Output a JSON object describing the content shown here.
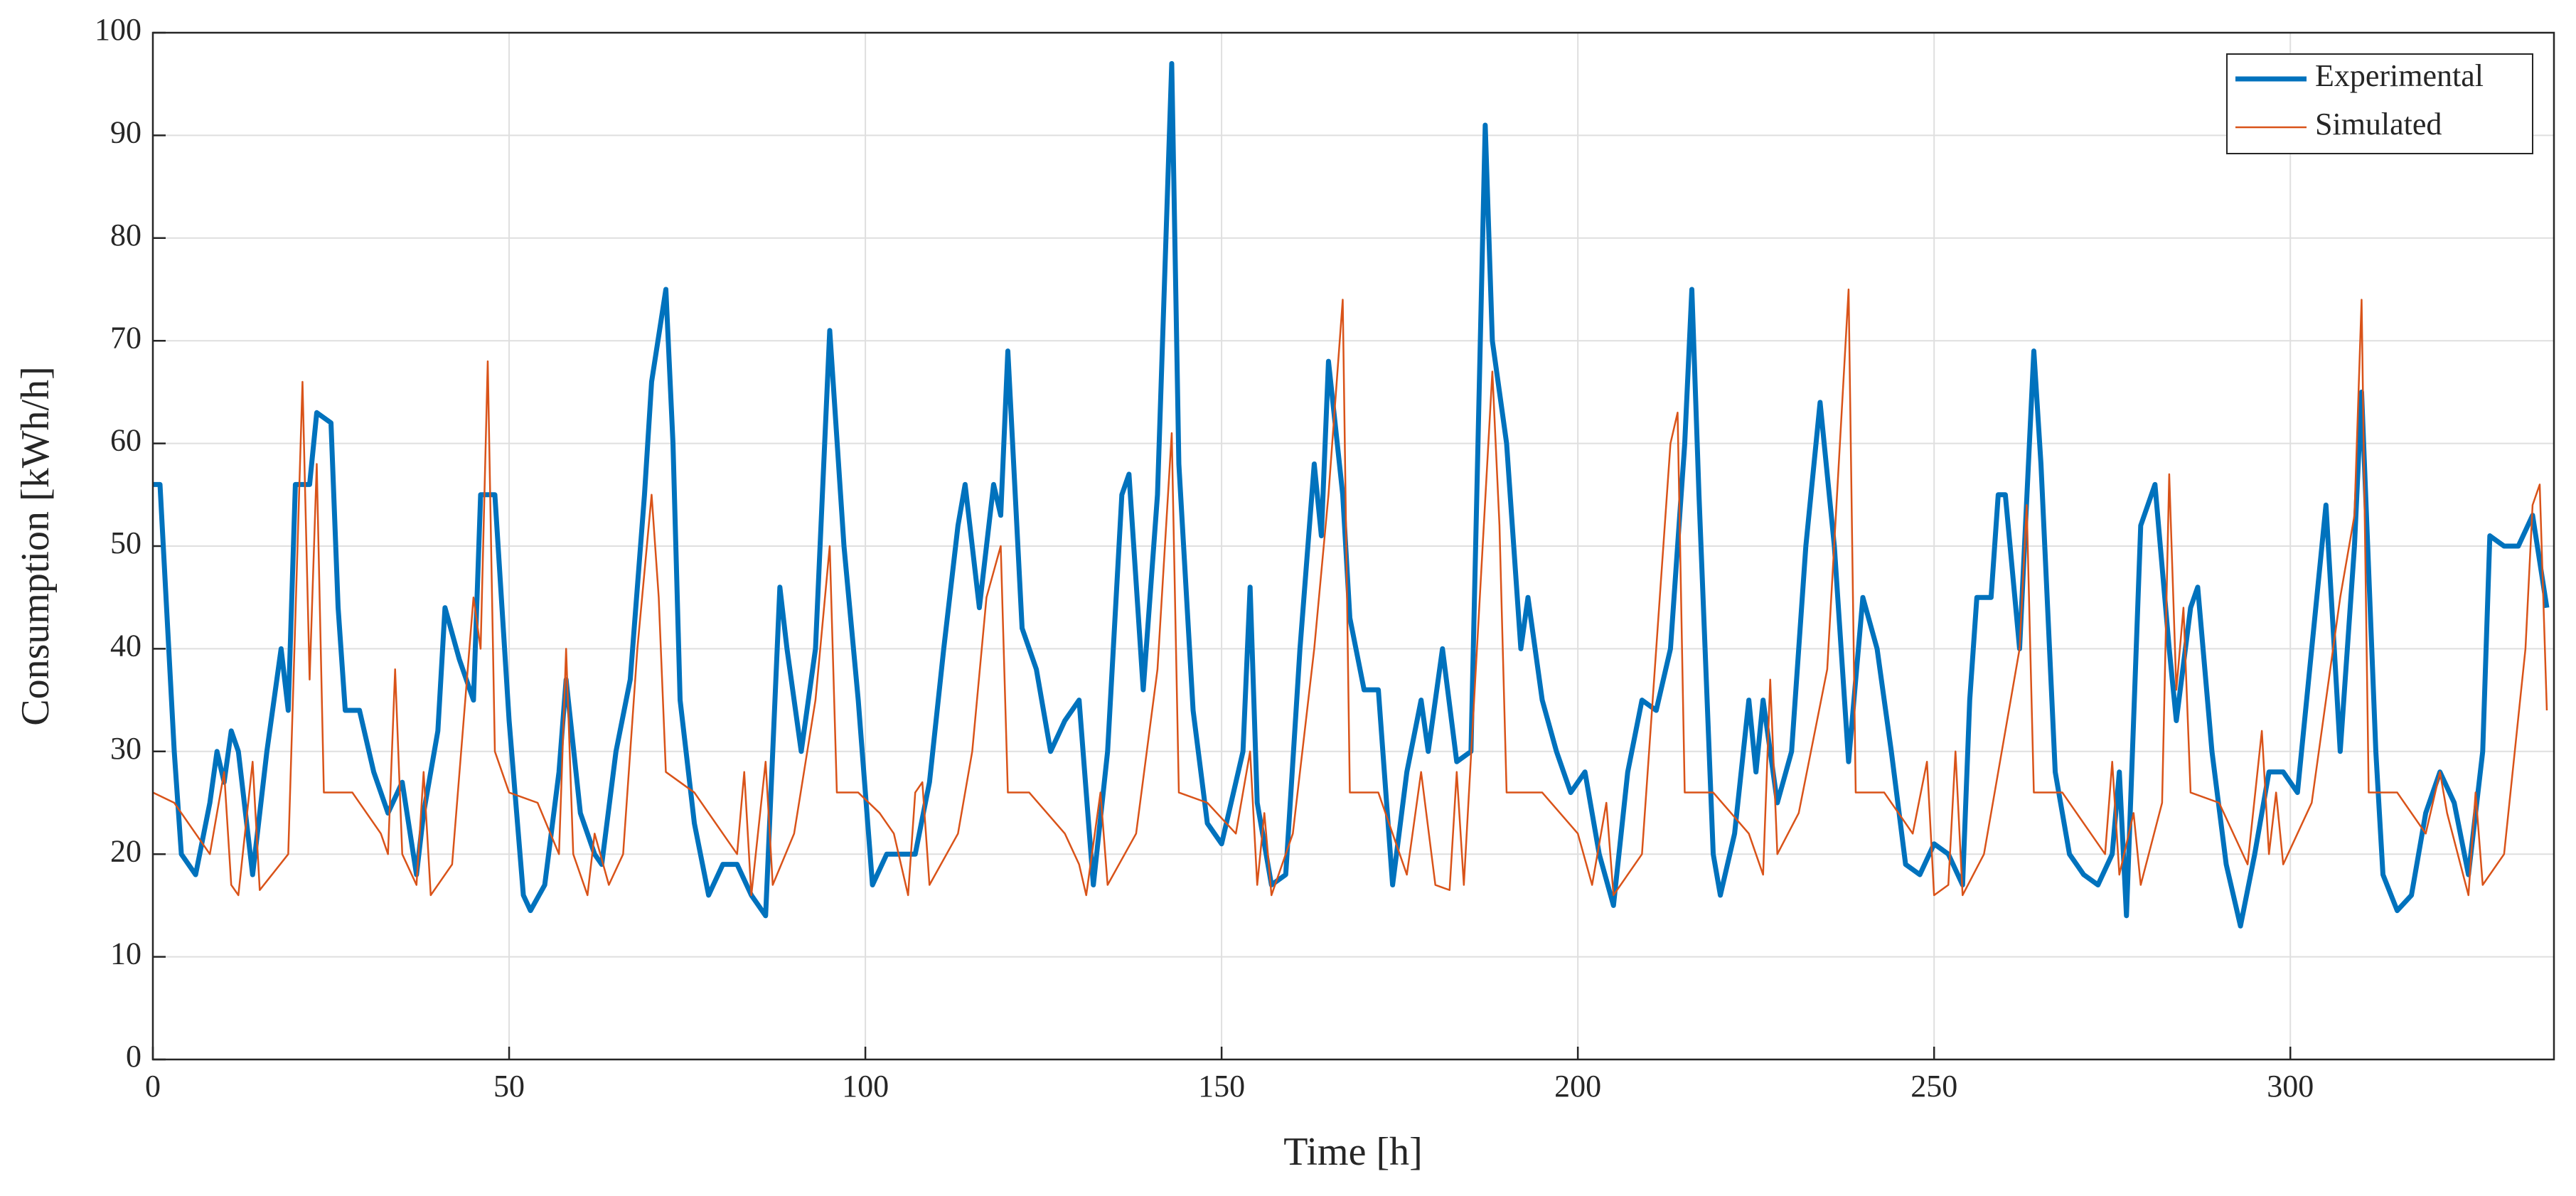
{
  "chart_data": {
    "type": "line",
    "xlabel": "Time [h]",
    "ylabel": "Consumption [kWh/h]",
    "xlim": [
      0,
      337
    ],
    "ylim": [
      0,
      100
    ],
    "xticks": [
      0,
      50,
      100,
      150,
      200,
      250,
      300
    ],
    "yticks": [
      0,
      10,
      20,
      30,
      40,
      50,
      60,
      70,
      80,
      90,
      100
    ],
    "grid": true,
    "legend": "upper right",
    "series": [
      {
        "name": "Experimental",
        "color": "#0072BD",
        "x": [
          0,
          1,
          3,
          4,
          6,
          8,
          9,
          10,
          11,
          12,
          14,
          16,
          18,
          19,
          20,
          22,
          23,
          25,
          26,
          27,
          29,
          31,
          33,
          35,
          37,
          38,
          40,
          41,
          43,
          45,
          46,
          48,
          49,
          50,
          52,
          53,
          55,
          57,
          58,
          60,
          62,
          63,
          65,
          67,
          69,
          70,
          72,
          73,
          74,
          76,
          78,
          80,
          82,
          84,
          86,
          87,
          88,
          89,
          91,
          93,
          95,
          97,
          99,
          101,
          103,
          105,
          107,
          109,
          111,
          113,
          114,
          116,
          118,
          119,
          120,
          122,
          124,
          126,
          128,
          130,
          132,
          134,
          136,
          137,
          139,
          141,
          143,
          144,
          146,
          148,
          150,
          153,
          154,
          155,
          157,
          159,
          161,
          163,
          164,
          165,
          167,
          168,
          170,
          172,
          174,
          176,
          178,
          179,
          181,
          183,
          185,
          187,
          188,
          190,
          192,
          193,
          195,
          197,
          199,
          201,
          203,
          205,
          207,
          209,
          211,
          213,
          215,
          216,
          217,
          219,
          220,
          222,
          224,
          225,
          226,
          228,
          230,
          232,
          234,
          236,
          238,
          240,
          242,
          244,
          246,
          248,
          250,
          252,
          254,
          255,
          256,
          258,
          259,
          260,
          262,
          264,
          265,
          267,
          269,
          271,
          273,
          275,
          276,
          277,
          279,
          281,
          283,
          284,
          286,
          287,
          289,
          291,
          293,
          295,
          297,
          299,
          301,
          303,
          305,
          307,
          309,
          310,
          312,
          313,
          315,
          317,
          319,
          321,
          323,
          325,
          327,
          328,
          330,
          332,
          334,
          336
        ],
        "values": [
          56,
          56,
          30,
          20,
          18,
          25,
          30,
          27,
          32,
          30,
          18,
          30,
          40,
          34,
          56,
          56,
          63,
          62,
          44,
          34,
          34,
          28,
          24,
          27,
          18,
          24,
          32,
          44,
          39,
          35,
          55,
          55,
          44,
          33,
          16,
          14.5,
          17,
          28,
          37,
          24,
          20,
          19,
          30,
          37,
          55,
          66,
          75,
          60,
          35,
          23,
          16,
          19,
          19,
          16,
          14,
          30,
          46,
          40,
          30,
          40,
          71,
          50,
          35,
          17,
          20,
          20,
          20,
          27,
          40,
          52,
          56,
          44,
          56,
          53,
          69,
          42,
          38,
          30,
          33,
          35,
          17,
          30,
          55,
          57,
          36,
          55,
          97,
          58,
          34,
          23,
          21,
          30,
          46,
          25,
          17,
          18,
          40,
          58,
          51,
          68,
          55,
          43,
          36,
          36,
          17,
          28,
          35,
          30,
          40,
          29,
          30,
          91,
          70,
          60,
          40,
          45,
          35,
          30,
          26,
          28,
          20,
          15,
          28,
          35,
          34,
          40,
          60,
          75,
          55,
          20,
          16,
          22,
          35,
          28,
          35,
          25,
          30,
          50,
          64,
          50,
          29,
          45,
          40,
          30,
          19,
          18,
          21,
          20,
          17,
          35,
          45,
          45,
          55,
          55,
          40,
          69,
          58,
          28,
          20,
          18,
          17,
          20,
          28,
          14,
          52,
          56,
          40,
          33,
          44,
          46,
          30,
          19,
          13,
          20,
          28,
          28,
          26,
          40,
          54,
          30,
          50,
          65,
          30,
          18,
          14.5,
          16,
          24,
          28,
          25,
          18,
          30,
          51,
          50,
          50,
          53,
          44
        ]
      },
      {
        "name": "Simulated",
        "color": "#D95319",
        "x": [
          0,
          3,
          6,
          8,
          10,
          11,
          12,
          14,
          15,
          19,
          21,
          22,
          23,
          24,
          28,
          32,
          33,
          34,
          35,
          37,
          38,
          39,
          42,
          45,
          46,
          47,
          48,
          50,
          54,
          57,
          58,
          59,
          61,
          62,
          64,
          66,
          68,
          70,
          71,
          72,
          76,
          80,
          82,
          83,
          84,
          86,
          87,
          90,
          93,
          95,
          96,
          99,
          102,
          104,
          106,
          107,
          108,
          109,
          113,
          115,
          117,
          119,
          120,
          123,
          128,
          130,
          131,
          133,
          134,
          138,
          141,
          143,
          144,
          148,
          152,
          154,
          155,
          156,
          157,
          160,
          163,
          165,
          167,
          168,
          172,
          174,
          176,
          178,
          180,
          182,
          183,
          184,
          188,
          189,
          190,
          195,
          200,
          202,
          204,
          205,
          209,
          213,
          214,
          215,
          219,
          224,
          226,
          227,
          228,
          231,
          235,
          238,
          239,
          243,
          247,
          249,
          250,
          252,
          253,
          254,
          257,
          262,
          263,
          264,
          268,
          272,
          274,
          275,
          276,
          278,
          279,
          282,
          283,
          284,
          285,
          286,
          290,
          294,
          296,
          297,
          298,
          299,
          303,
          307,
          309,
          310,
          311,
          315,
          319,
          321,
          322,
          325,
          326,
          327,
          330,
          333,
          334,
          335,
          336
        ],
        "values": [
          26,
          25,
          22,
          20,
          28,
          17,
          16,
          29,
          16.5,
          20,
          66,
          37,
          58,
          26,
          26,
          22,
          20,
          38,
          20,
          17,
          28,
          16,
          19,
          45,
          40,
          68,
          30,
          26,
          25,
          20,
          40,
          20,
          16,
          22,
          17,
          20,
          40,
          55,
          45,
          28,
          26,
          22,
          20,
          28,
          16,
          29,
          17,
          22,
          35,
          50,
          26,
          26,
          24,
          22,
          16,
          26,
          27,
          17,
          22,
          30,
          45,
          50,
          26,
          26,
          22,
          19,
          16,
          26,
          17,
          22,
          38,
          61,
          26,
          25,
          22,
          30,
          17,
          24,
          16,
          22,
          40,
          55,
          74,
          26,
          26,
          22,
          18,
          28,
          17,
          16.5,
          28,
          17,
          67,
          52,
          26,
          26,
          22,
          17,
          25,
          16,
          20,
          60,
          63,
          26,
          26,
          22,
          18,
          37,
          20,
          24,
          38,
          75,
          26,
          26,
          22,
          29,
          16,
          17,
          30,
          16,
          20,
          40,
          54,
          26,
          26,
          22,
          20,
          29,
          18,
          24,
          17,
          25,
          57,
          36,
          44,
          26,
          25,
          19,
          32,
          20,
          26,
          19,
          25,
          45,
          53,
          74,
          26,
          26,
          22,
          28,
          24,
          16,
          26,
          17,
          20,
          40,
          54,
          56,
          34
        ]
      }
    ]
  }
}
